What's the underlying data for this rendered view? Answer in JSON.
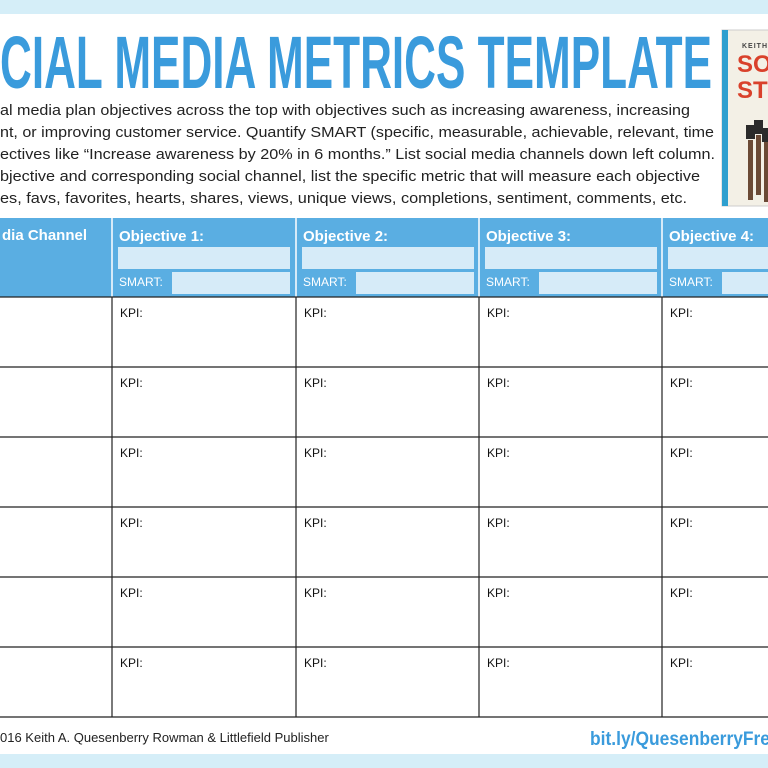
{
  "header": {
    "title": "CIAL MEDIA METRICS TEMPLATE",
    "description": [
      "al media plan objectives across the top with objectives such as increasing awareness, increasing",
      "nt, or improving customer service. Quantify SMART (specific, measurable, achievable, relevant, time",
      "ectives like “Increase awareness by 20% in 6 months.” List social media channels down left column.",
      "bjective and corresponding social channel, list the specific metric that will measure each objective",
      "es, favs, favorites, hearts, shares, views, unique views, completions, sentiment, comments, etc."
    ]
  },
  "book": {
    "author": "KEITH",
    "title_lines": [
      "SOC",
      "STI"
    ]
  },
  "table": {
    "channel_header": "dia Channel",
    "objectives": [
      {
        "title": "Objective 1:",
        "smart": "SMART:"
      },
      {
        "title": "Objective 2:",
        "smart": "SMART:"
      },
      {
        "title": "Objective 3:",
        "smart": "SMART:"
      },
      {
        "title": "Objective 4:",
        "smart": "SMART:"
      }
    ],
    "rows": [
      [
        "KPI:",
        "KPI:",
        "KPI:",
        "KPI:"
      ],
      [
        "KPI:",
        "KPI:",
        "KPI:",
        "KPI:"
      ],
      [
        "KPI:",
        "KPI:",
        "KPI:",
        "KPI:"
      ],
      [
        "KPI:",
        "KPI:",
        "KPI:",
        "KPI:"
      ],
      [
        "KPI:",
        "KPI:",
        "KPI:",
        "KPI:"
      ],
      [
        "KPI:",
        "KPI:",
        "KPI:",
        "KPI:"
      ]
    ]
  },
  "footer": {
    "copyright": "016 Keith A. Quesenberry Rowman & Littlefield Publisher",
    "link": "bit.ly/QuesenberryFre"
  }
}
